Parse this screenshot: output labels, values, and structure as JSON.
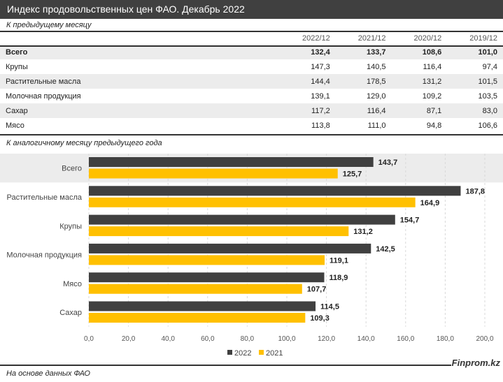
{
  "title": "Индекс продовольственных цен ФАО. Декабрь 2022",
  "table": {
    "subtitle": "К предыдущему месяцу",
    "columns": [
      "",
      "2022/12",
      "2021/12",
      "2020/12",
      "2019/12"
    ],
    "rows": [
      [
        "Всего",
        "132,4",
        "133,7",
        "108,6",
        "101,0"
      ],
      [
        "Крупы",
        "147,3",
        "140,5",
        "116,4",
        "97,4"
      ],
      [
        "Растительные масла",
        "144,4",
        "178,5",
        "131,2",
        "101,5"
      ],
      [
        "Молочная продукция",
        "139,1",
        "129,0",
        "109,2",
        "103,5"
      ],
      [
        "Сахар",
        "117,2",
        "116,4",
        "87,1",
        "83,0"
      ],
      [
        "Мясо",
        "113,8",
        "111,0",
        "94,8",
        "106,6"
      ]
    ]
  },
  "chart_data": {
    "type": "bar",
    "orientation": "horizontal",
    "subtitle": "К аналогичному месяцу предыдущего года",
    "categories": [
      "Всего",
      "Растительные масла",
      "Крупы",
      "Молочная продукция",
      "Мясо",
      "Сахар"
    ],
    "series": [
      {
        "name": "2022",
        "color": "#404040",
        "values": [
          143.7,
          187.8,
          154.7,
          142.5,
          118.9,
          114.5
        ],
        "labels": [
          "143,7",
          "187,8",
          "154,7",
          "142,5",
          "118,9",
          "114,5"
        ]
      },
      {
        "name": "2021",
        "color": "#FFC000",
        "values": [
          125.7,
          164.9,
          131.2,
          119.1,
          107.7,
          109.3
        ],
        "labels": [
          "125,7",
          "164,9",
          "131,2",
          "119,1",
          "107,7",
          "109,3"
        ]
      }
    ],
    "xlim": [
      0,
      200
    ],
    "ticks": [
      "0,0",
      "20,0",
      "40,0",
      "60,0",
      "80,0",
      "100,0",
      "120,0",
      "140,0",
      "160,0",
      "180,0",
      "200,0"
    ],
    "grid": true,
    "legend": "bottom"
  },
  "footer": {
    "brand": "Finprom.kz",
    "note": "На основе данных ФАО"
  }
}
